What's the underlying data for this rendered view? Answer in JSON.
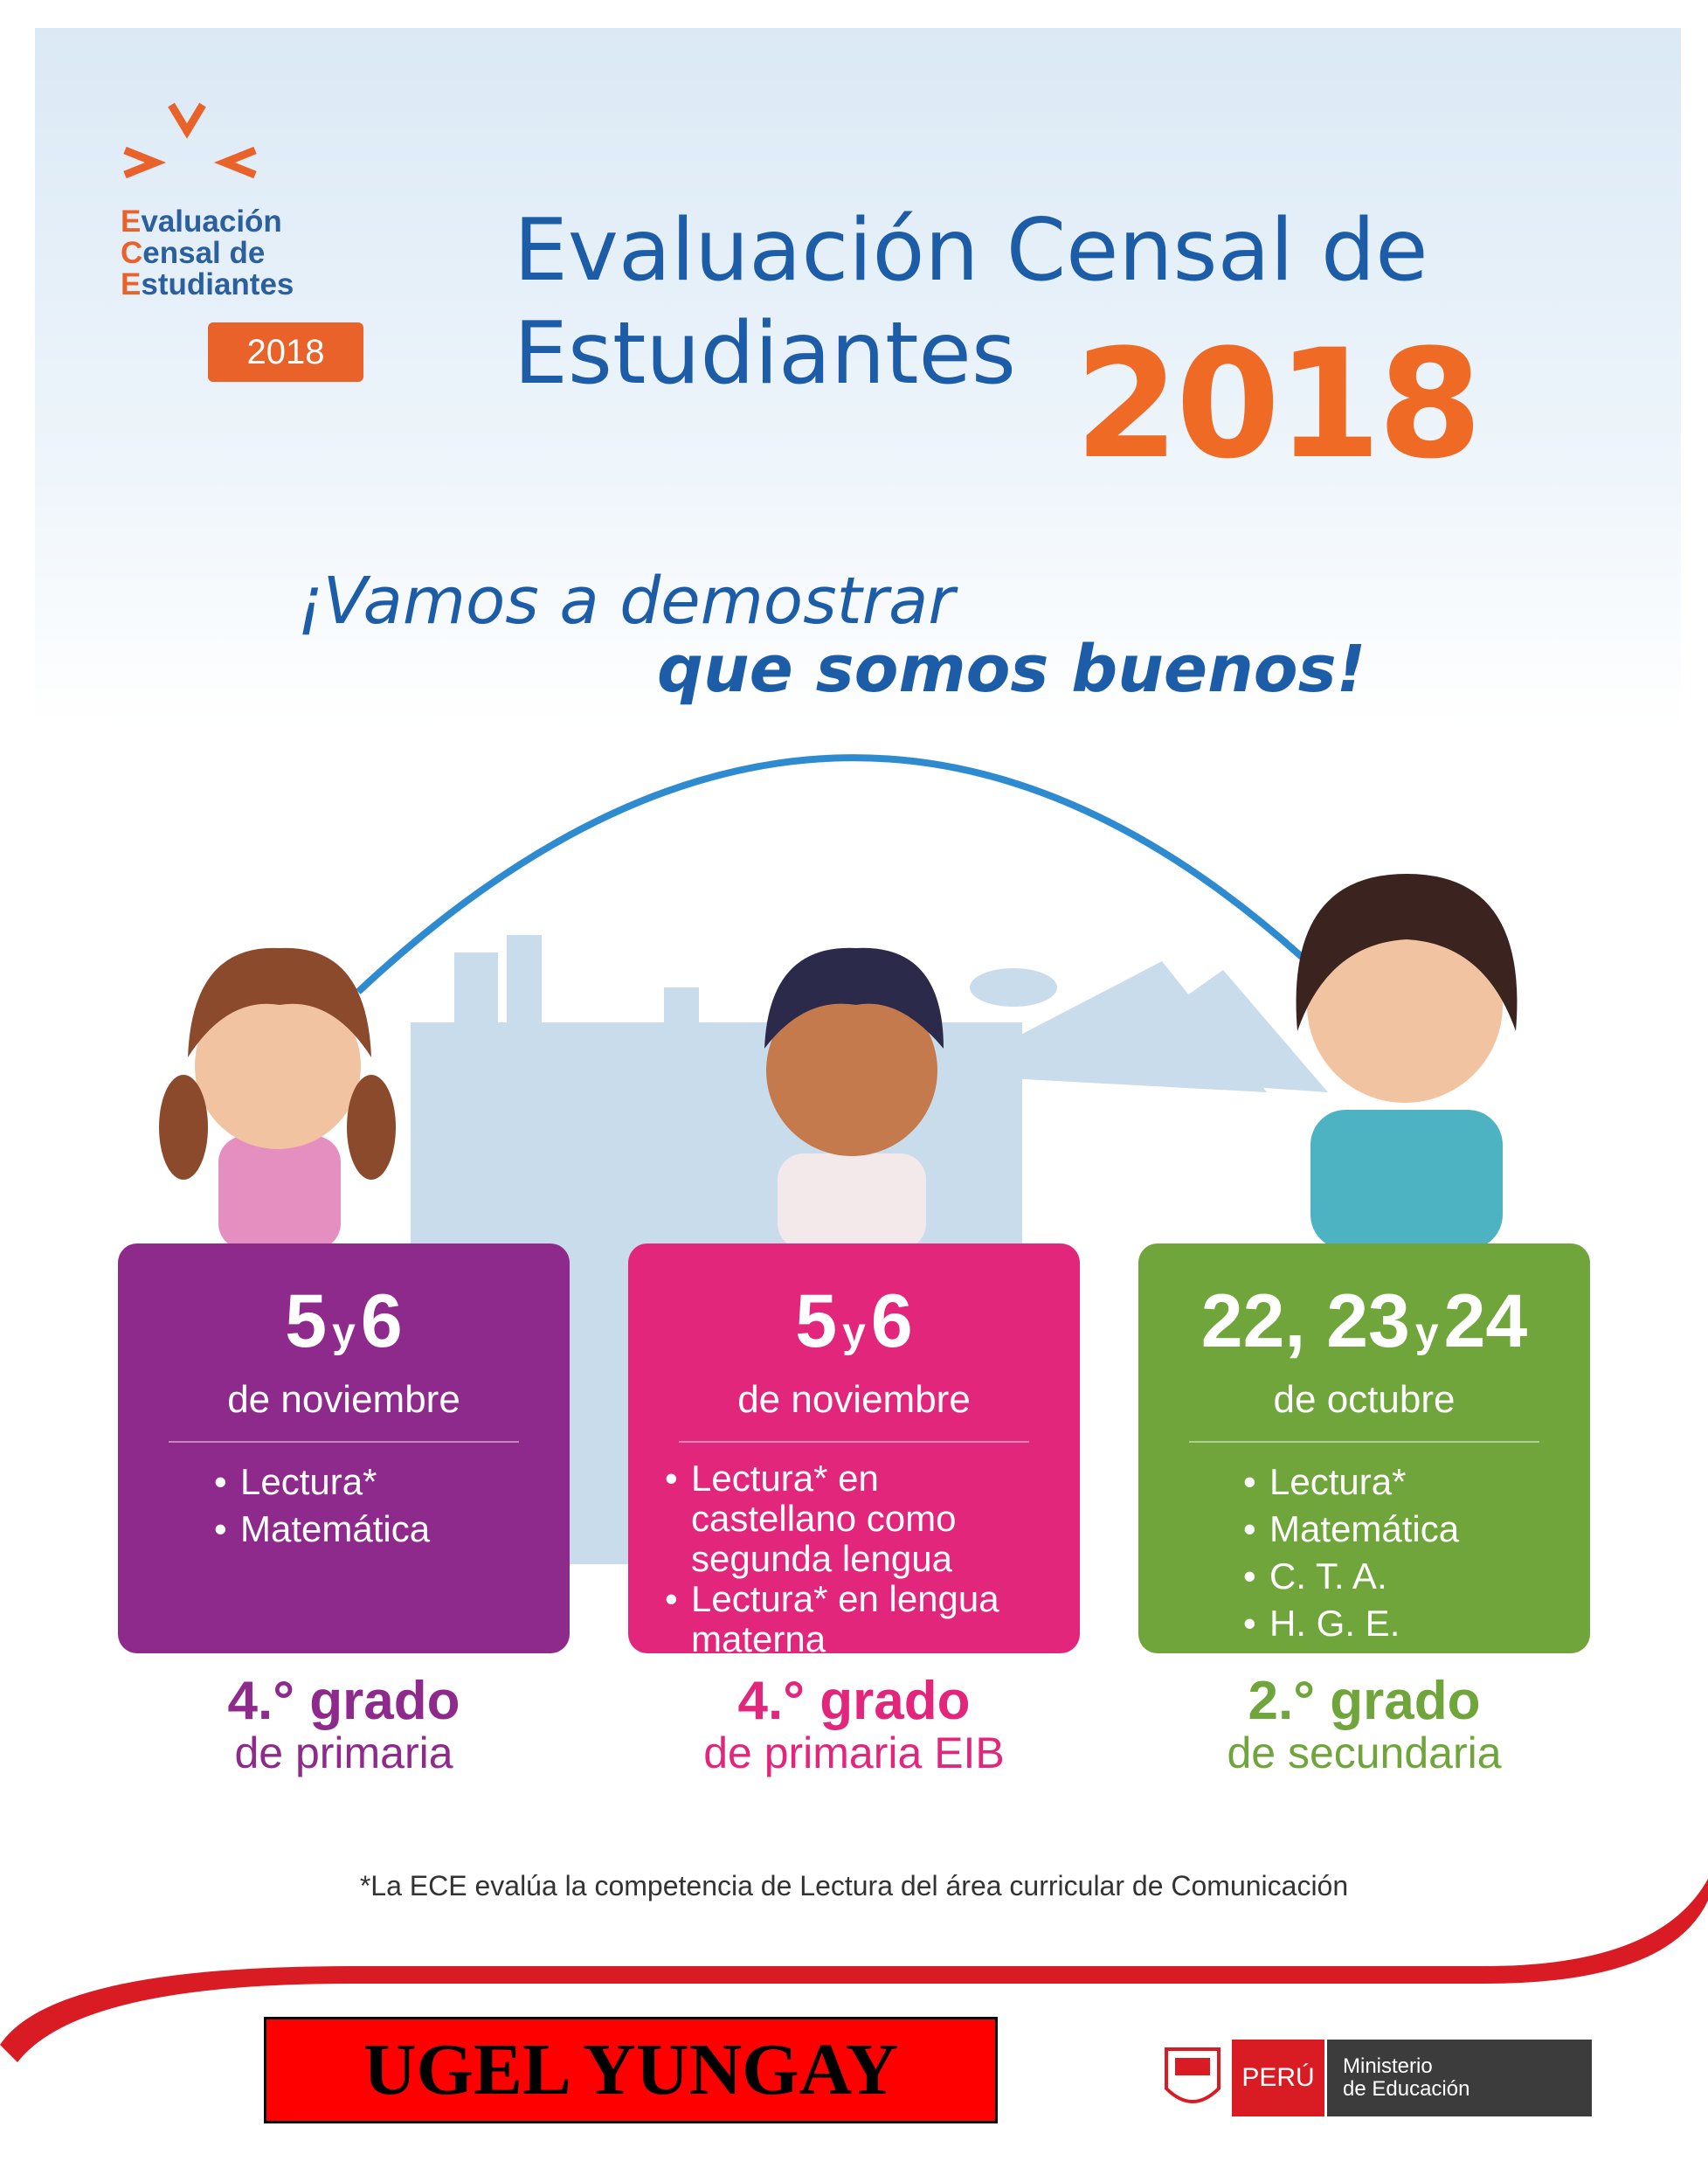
{
  "logo": {
    "lines": [
      "Evaluación",
      "Censal de",
      "Estudiantes"
    ],
    "year": "2018"
  },
  "header": {
    "title_line1": "Evaluación Censal de",
    "title_line2": "Estudiantes",
    "year": "2018"
  },
  "slogan": {
    "line1": "¡Vamos a demostrar",
    "line2": "que somos buenos!"
  },
  "cards": [
    {
      "date_parts": [
        "5",
        "y",
        "6"
      ],
      "month": "de noviembre",
      "items": [
        "Lectura*",
        "Matemática"
      ],
      "grade": "4.° grado",
      "level": "de primaria"
    },
    {
      "date_parts": [
        "5",
        "y",
        "6"
      ],
      "month": "de noviembre",
      "items": [
        "Lectura* en castellano como segunda lengua",
        "Lectura* en lengua materna"
      ],
      "grade": "4.° grado",
      "level": "de primaria EIB"
    },
    {
      "date_parts": [
        "22, 23",
        "y",
        "24"
      ],
      "month": "de octubre",
      "items": [
        "Lectura*",
        "Matemática",
        "C. T. A.",
        "H. G. E."
      ],
      "grade": "2.° grado",
      "level": "de secundaria"
    }
  ],
  "footnote": "*La ECE evalúa la competencia de Lectura del área curricular de Comunicación",
  "badge": "UGEL YUNGAY",
  "government": {
    "country": "PERÚ",
    "ministry_line1": "Ministerio",
    "ministry_line2": "de Educación"
  }
}
